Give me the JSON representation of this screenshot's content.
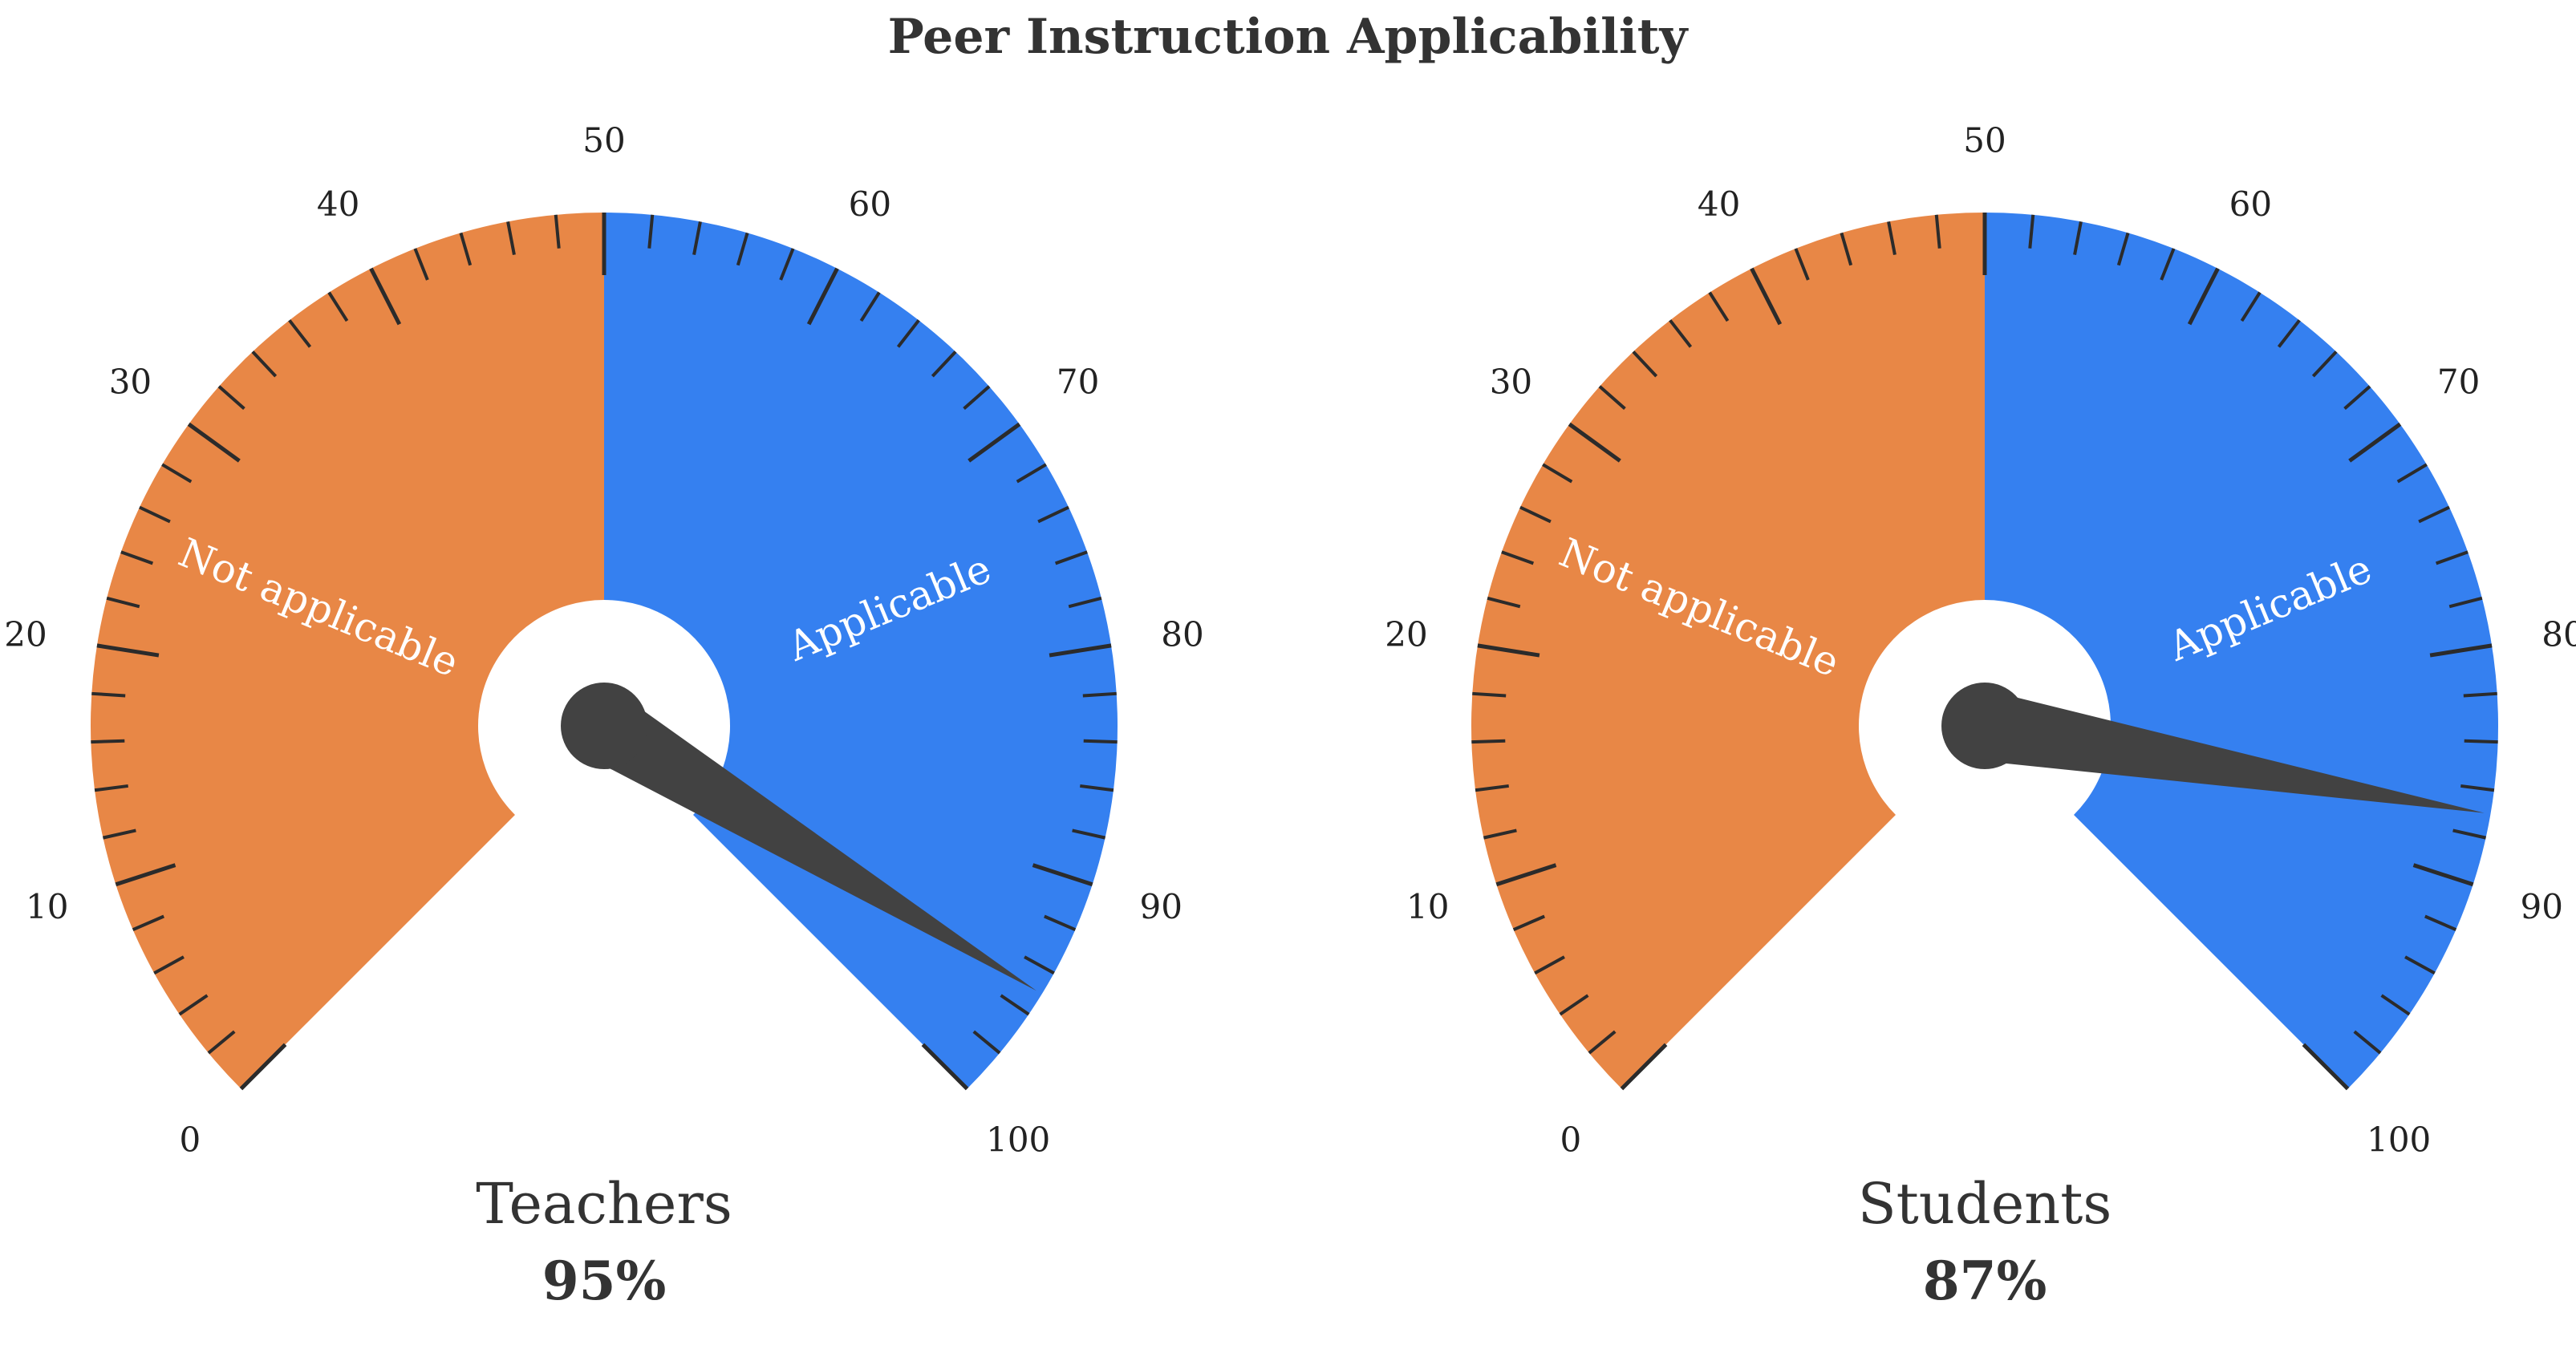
{
  "chart_data": {
    "type": "gauge",
    "title": "Peer Instruction Applicability",
    "scale": {
      "min": 0,
      "max": 100,
      "major_step": 10,
      "minor_step": 2
    },
    "bands": [
      {
        "label": "Not applicable",
        "from": 0,
        "to": 50,
        "color": "#E88746"
      },
      {
        "label": "Applicable",
        "from": 50,
        "to": 100,
        "color": "#3580F0"
      }
    ],
    "needle_color": "#424242",
    "tick_color": "#2b2b2b",
    "gauges": [
      {
        "name": "Teachers",
        "value": 95,
        "value_label": "95%"
      },
      {
        "name": "Students",
        "value": 87,
        "value_label": "87%"
      }
    ]
  }
}
